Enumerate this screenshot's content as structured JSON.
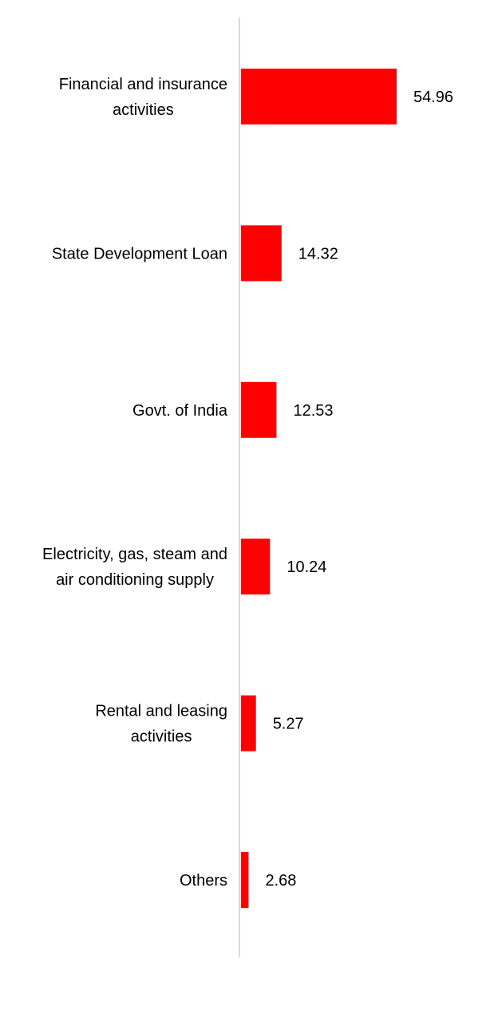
{
  "chart_data": {
    "type": "bar",
    "orientation": "horizontal",
    "categories": [
      [
        "Financial and insurance",
        "activities"
      ],
      [
        "State Development Loan"
      ],
      [
        "Govt. of India"
      ],
      [
        "Electricity, gas, steam and",
        "air conditioning supply"
      ],
      [
        "Rental and leasing",
        "activities"
      ],
      [
        "Others"
      ]
    ],
    "values": [
      54.96,
      14.32,
      12.53,
      10.24,
      5.27,
      2.68
    ],
    "value_labels": [
      "54.96",
      "14.32",
      "12.53",
      "10.24",
      "5.27",
      "2.68"
    ],
    "title": "",
    "xlabel": "",
    "ylabel": "",
    "xlim": [
      0,
      54.96
    ],
    "grid": false,
    "legend": "none",
    "colors": {
      "bar": "#ff0000",
      "axis": "#d9d9d9",
      "text": "#000000"
    }
  }
}
